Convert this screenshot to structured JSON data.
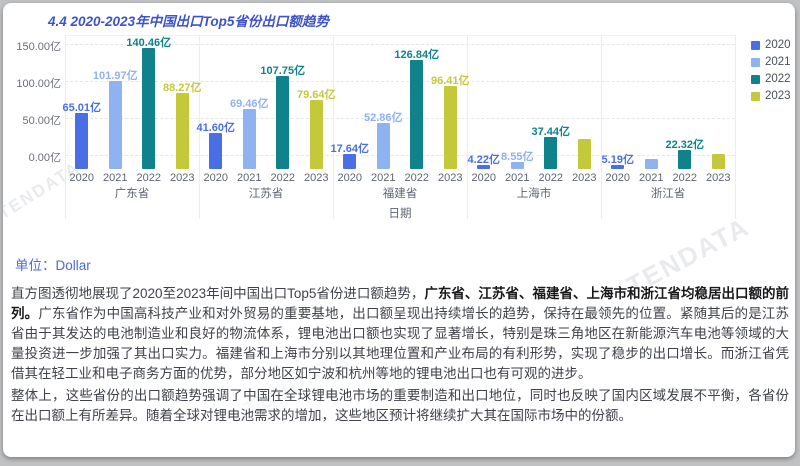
{
  "header": {
    "title": "4.4 2020-2023年中国出口Top5省份出口额趋势"
  },
  "chart_data": {
    "type": "bar",
    "title": "4.4 2020-2023年中国出口Top5省份出口额趋势",
    "xlabel": "日期",
    "ylabel": "",
    "y_ticks": [
      "150.00亿",
      "100.00亿",
      "50.00亿",
      "0.00亿"
    ],
    "ylim": [
      0,
      150
    ],
    "grid": true,
    "legend_position": "right",
    "categories": [
      "广东省",
      "江苏省",
      "福建省",
      "上海市",
      "浙江省"
    ],
    "series": [
      {
        "name": "2020",
        "color": "#4a6fe4",
        "values": [
          65.01,
          41.6,
          17.64,
          4.22,
          5.19
        ],
        "labels": [
          "65.01亿",
          "41.60亿",
          "17.64亿",
          "4.22亿",
          "5.19亿"
        ]
      },
      {
        "name": "2021",
        "color": "#8fb2f0",
        "values": [
          101.97,
          69.46,
          52.86,
          8.55,
          11.5
        ],
        "labels": [
          "101.97亿",
          "69.46亿",
          "52.86亿",
          "8.55亿",
          null
        ]
      },
      {
        "name": "2022",
        "color": "#0f828c",
        "values": [
          140.46,
          107.75,
          126.84,
          37.44,
          22.32
        ],
        "labels": [
          "140.46亿",
          "107.75亿",
          "126.84亿",
          "37.44亿",
          "22.32亿"
        ]
      },
      {
        "name": "2023",
        "color": "#c4c93c",
        "values": [
          88.27,
          79.64,
          96.41,
          34.5,
          17.5
        ],
        "labels": [
          "88.27亿",
          "79.64亿",
          "96.41亿",
          null,
          null
        ]
      }
    ],
    "watermark": "TENDATA"
  },
  "description": {
    "unit_label": "单位：",
    "unit_value": "Dollar",
    "p1_pre": "直方图透彻地展现了2020至2023年间中国出口Top5省份进口额趋势，",
    "p1_bold": "广东省、江苏省、福建省、上海市和浙江省均稳居出口额的前列。",
    "p1_rest": "广东省作为中国高科技产业和对外贸易的重要基地，出口额呈现出持续增长的趋势，保持在最领先的位置。紧随其后的是江苏省由于其发达的电池制造业和良好的物流体系，锂电池出口额也实现了显著增长，特别是珠三角地区在新能源汽车电池等领域的大量投资进一步加强了其出口实力。福建省和上海市分别以其地理位置和产业布局的有利形势，实现了稳步的出口增长。而浙江省凭借其在轻工业和电子商务方面的优势，部分地区如宁波和杭州等地的锂电池出口也有可观的进步。",
    "p2": "整体上，这些省份的出口额趋势强调了中国在全球锂电池市场的重要制造和出口地位，同时也反映了国内区域发展不平衡，各省份在出口额上有所差异。随着全球对锂电池需求的增加，这些地区预计将继续扩大其在国际市场中的份额。"
  }
}
